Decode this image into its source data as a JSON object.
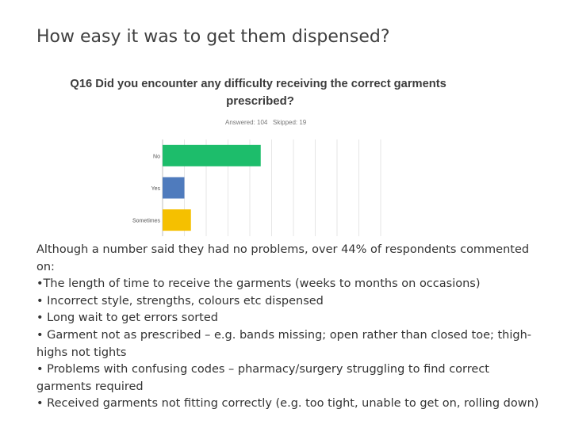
{
  "slide": {
    "title": "How easy it was to get them dispensed?"
  },
  "chart_data": {
    "type": "bar",
    "orientation": "horizontal",
    "title": "Q16 Did you encounter any difficulty receiving the correct garments prescribed?",
    "title_lines": [
      "Q16 Did you encounter any difficulty receiving the correct garments",
      "prescribed?"
    ],
    "answered_label": "Answered: 104",
    "skipped_label": "Skipped: 19",
    "categories": [
      "No",
      "Yes",
      "Sometimes"
    ],
    "values": [
      45,
      10,
      13
    ],
    "xlim": [
      0,
      100
    ],
    "grid": true,
    "colors": [
      "#1dbd6b",
      "#4f7bbd",
      "#f5c000"
    ]
  },
  "body": {
    "lines": [
      "Although a number said they had no problems, over 44% of  respondents commented  on:",
      "•The length of time to receive the garments (weeks to months on occasions)",
      "• Incorrect style, strengths, colours etc dispensed",
      "• Long wait to get errors sorted",
      "• Garment not as prescribed – e.g. bands missing; open rather than closed toe; thigh-highs not tights",
      "• Problems with confusing codes – pharmacy/surgery struggling to find correct garments required",
      "• Received garments not fitting correctly (e.g. too tight, unable to get on, rolling down)"
    ]
  }
}
